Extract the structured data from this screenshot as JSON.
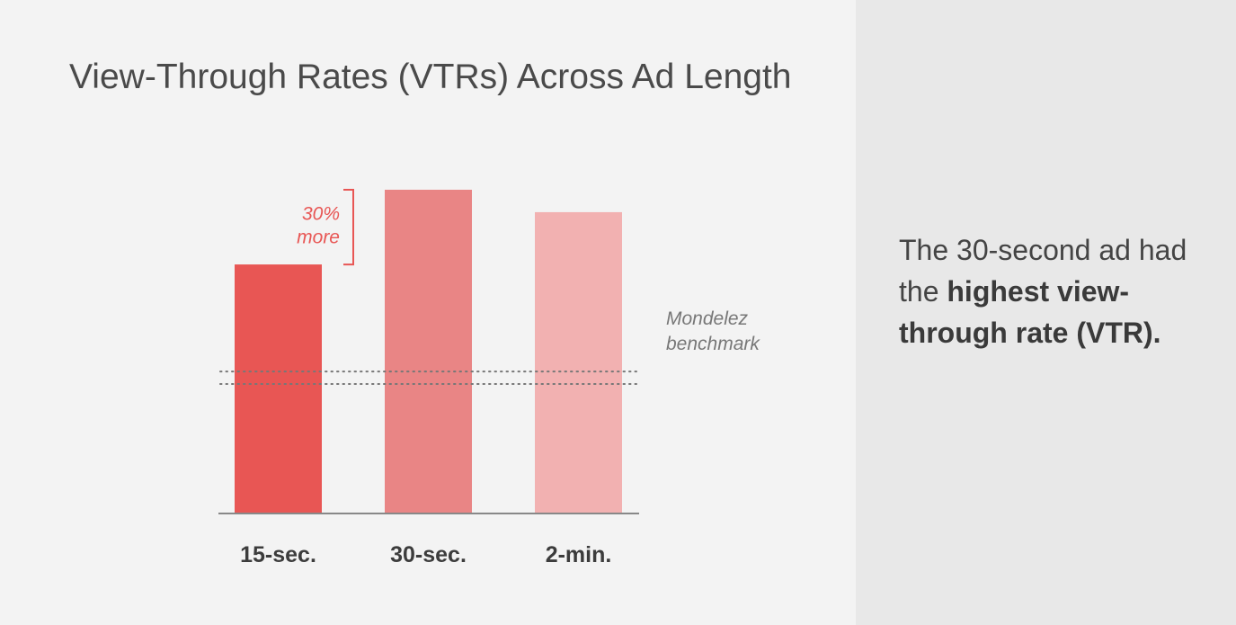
{
  "title": "View-Through Rates (VTRs) Across Ad Length",
  "callout": {
    "prefix": "The 30-second ad had the ",
    "highlight": "highest view-through rate (VTR)."
  },
  "chart_data": {
    "type": "bar",
    "title": "View-Through Rates (VTRs) Across Ad Length",
    "xlabel": "",
    "ylabel": "",
    "categories": [
      "15-sec.",
      "30-sec.",
      "2-min."
    ],
    "values": [
      100,
      130,
      121
    ],
    "ylim": [
      0,
      130
    ],
    "bar_colors": [
      "#e85654",
      "#e98585",
      "#f2b1b1"
    ],
    "benchmark": {
      "label_line1": "Mondelez",
      "label_line2": "benchmark",
      "range": [
        52,
        57
      ]
    },
    "annotation": {
      "line1": "30%",
      "line2": "more",
      "from_category": 0,
      "to_category": 1
    },
    "grid": false,
    "legend": "none"
  },
  "colors": {
    "annotation": "#e85654",
    "benchmark": "#777777",
    "axis": "#888888",
    "tick_label": "#3c3c3c"
  }
}
